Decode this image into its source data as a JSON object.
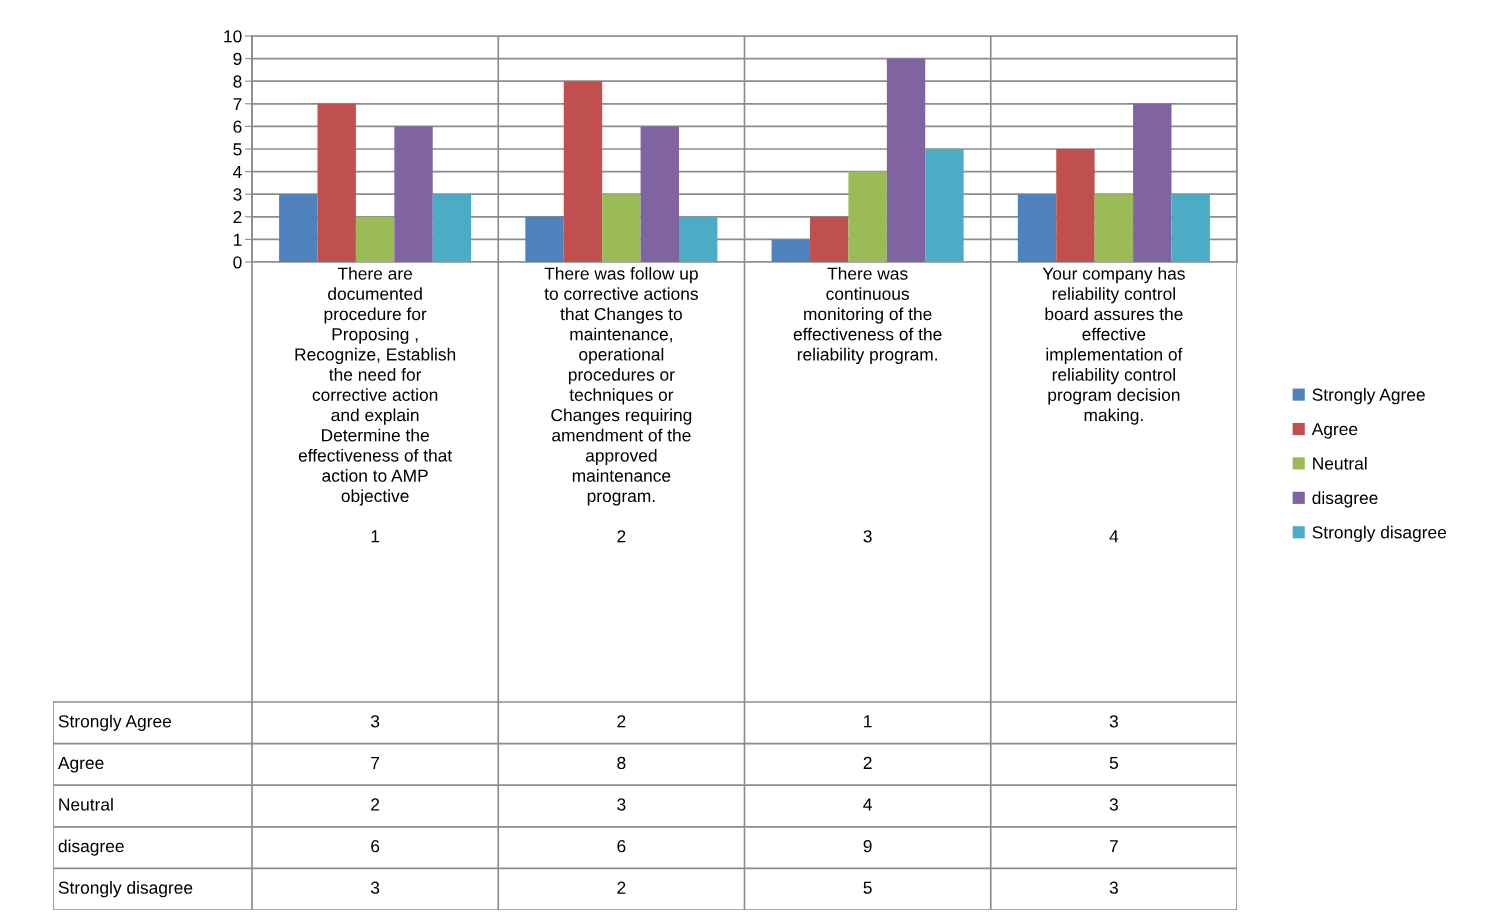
{
  "chart_data": {
    "type": "bar",
    "categories": [
      "There are\ndocumented\nprocedure for\nProposing ,\nRecognize, Establish\nthe need for\ncorrective action\nand explain\nDetermine the\neffectiveness of that\naction to AMP\nobjective\n\n1",
      "There was follow up\nto corrective actions\nthat Changes to\nmaintenance,\noperational\nprocedures or\ntechniques or\nChanges requiring\namendment of the\napproved\nmaintenance\nprogram.\n\n2",
      "There was\ncontinuous\nmonitoring of the\neffectiveness of the\nreliability program.\n\n\n\n\n\n\n\n\n3",
      "Your company has\nreliability control\nboard assures the\neffective\nimplementation of\nreliability control\nprogram decision\nmaking.\n\n\n\n\n\n4"
    ],
    "series": [
      {
        "name": "Strongly Agree",
        "color": "#4f81bd",
        "values": [
          3,
          2,
          1,
          3
        ]
      },
      {
        "name": "Agree",
        "color": "#c0504d",
        "values": [
          7,
          8,
          2,
          5
        ]
      },
      {
        "name": "Neutral",
        "color": "#9bbb59",
        "values": [
          2,
          3,
          4,
          3
        ]
      },
      {
        "name": "disagree",
        "color": "#8064a2",
        "values": [
          6,
          6,
          9,
          7
        ]
      },
      {
        "name": "Strongly disagree",
        "color": "#4bacc6",
        "values": [
          3,
          2,
          5,
          3
        ]
      }
    ],
    "ylim": [
      0,
      10
    ],
    "yticks": [
      0,
      1,
      2,
      3,
      4,
      5,
      6,
      7,
      8,
      9,
      10
    ],
    "grid": "y",
    "legend": "right",
    "data_labels": true
  }
}
